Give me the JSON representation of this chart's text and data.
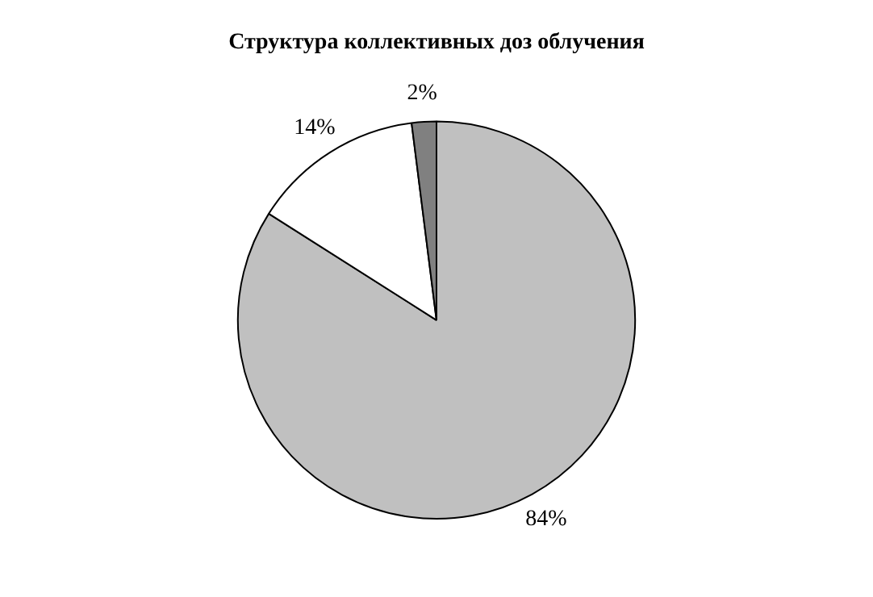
{
  "chart_data": {
    "type": "pie",
    "title": "Структура коллективных доз облучения",
    "categories": [
      null,
      null,
      null
    ],
    "values": [
      84,
      14,
      2
    ],
    "colors": [
      "#c0c0c0",
      "#ffffff",
      "#808080"
    ],
    "value_labels": [
      "84%",
      "14%",
      "2%"
    ],
    "legend": false
  }
}
